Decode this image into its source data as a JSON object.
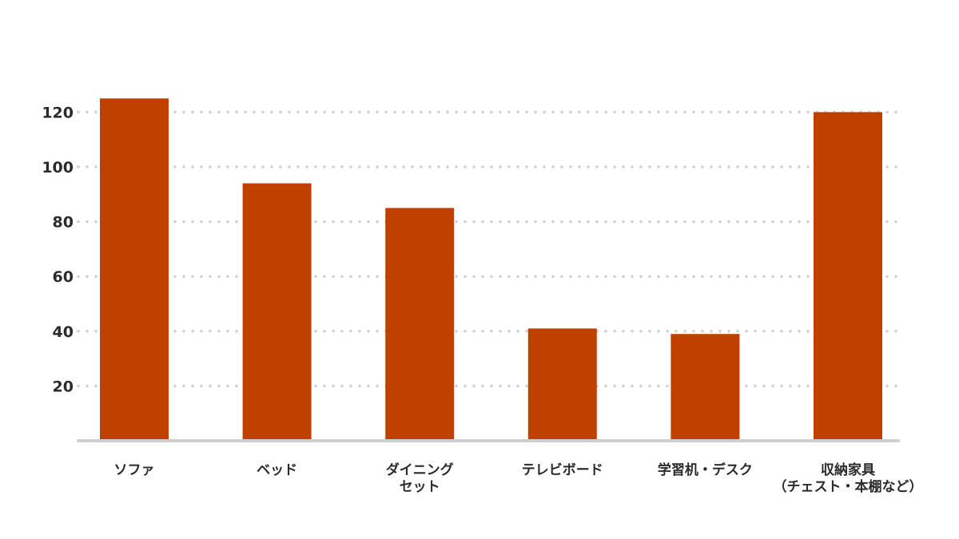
{
  "chart_data": {
    "type": "bar",
    "categories": [
      [
        "ソファ"
      ],
      [
        "ベッド"
      ],
      [
        "ダイニング",
        "セット"
      ],
      [
        "テレビボード"
      ],
      [
        "学習机・デスク"
      ],
      [
        "収納家具",
        "（チェスト・本棚など）"
      ]
    ],
    "values": [
      125,
      94,
      85,
      41,
      39,
      120
    ],
    "yticks": [
      20,
      40,
      60,
      80,
      100,
      120
    ],
    "ylim": [
      0,
      120
    ],
    "grid": true,
    "grid_style": "dotted",
    "bar_color": "#c04000",
    "title": "",
    "xlabel": "",
    "ylabel": ""
  }
}
